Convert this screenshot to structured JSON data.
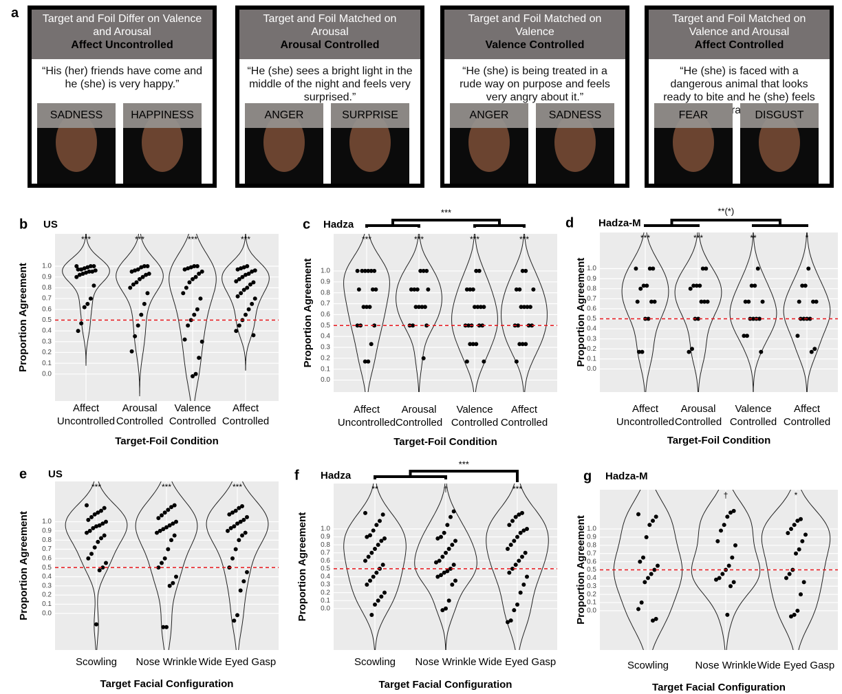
{
  "panel_a": {
    "label": "a",
    "stimuli": [
      {
        "header": "Target and Foil Differ on Valence and Arousal",
        "condition": "Affect Uncontrolled",
        "quote": "“His (her) friends have come and he (she) is very happy.”",
        "target": "SADNESS",
        "foil": "HAPPINESS"
      },
      {
        "header": "Target and Foil Matched on Arousal",
        "condition": "Arousal Controlled",
        "quote": "“He (she) sees a bright light in the middle of the night and feels very surprised.”",
        "target": "ANGER",
        "foil": "SURPRISE"
      },
      {
        "header": "Target and Foil Matched on Valence",
        "condition": "Valence Controlled",
        "quote": "“He (she) is being treated in a rude way on purpose and feels very angry about it.”",
        "target": "ANGER",
        "foil": "SADNESS"
      },
      {
        "header": "Target and Foil Matched on Valence and Arousal",
        "condition": "Affect  Controlled",
        "quote": "“He (she) is faced with a dangerous animal that looks ready to bite and he (she) feels afraid.”",
        "target": "FEAR",
        "foil": "DISGUST"
      }
    ]
  },
  "chart_data": [
    {
      "type": "violin",
      "panel": "b",
      "title": "US",
      "ylabel": "Proportion Agreement",
      "xlabel": "Target-Foil Condition",
      "categories": [
        [
          "Affect",
          "Uncontrolled"
        ],
        [
          "Arousal",
          "Controlled"
        ],
        [
          "Valence",
          "Controlled"
        ],
        [
          "Affect",
          "Controlled"
        ]
      ],
      "significance": [
        "***",
        "***",
        "***",
        "***"
      ],
      "values": [
        [
          1.0,
          1.0,
          1.0,
          0.99,
          0.98,
          0.97,
          0.97,
          0.96,
          0.95,
          0.95,
          0.94,
          0.93,
          0.92,
          0.9,
          0.82,
          0.7,
          0.65,
          0.62,
          0.47,
          0.4
        ],
        [
          1.0,
          1.0,
          0.99,
          0.97,
          0.96,
          0.95,
          0.93,
          0.92,
          0.9,
          0.88,
          0.85,
          0.83,
          0.8,
          0.75,
          0.65,
          0.55,
          0.45,
          0.35,
          0.21
        ],
        [
          1.0,
          1.0,
          0.99,
          0.98,
          0.97,
          0.95,
          0.93,
          0.9,
          0.88,
          0.85,
          0.8,
          0.75,
          0.7,
          0.6,
          0.55,
          0.5,
          0.45,
          0.32,
          0.3,
          0.15,
          0.0,
          -0.02
        ],
        [
          1.0,
          0.99,
          0.98,
          0.97,
          0.96,
          0.95,
          0.93,
          0.92,
          0.9,
          0.88,
          0.86,
          0.85,
          0.83,
          0.8,
          0.78,
          0.75,
          0.72,
          0.7,
          0.65,
          0.6,
          0.55,
          0.5,
          0.45,
          0.4,
          0.36
        ]
      ],
      "ylim": [
        -0.25,
        1.3
      ],
      "yticks": [
        {
          "value": 0,
          "label": "0.0"
        },
        0.1,
        0.2,
        0.3,
        0.4,
        0.5,
        0.6,
        0.7,
        0.8,
        0.9,
        {
          "value": 1,
          "label": "1.0"
        }
      ],
      "reference_line": 0.5,
      "reference_color": "#e8141a",
      "color": "#000000",
      "grid": true
    },
    {
      "type": "violin",
      "panel": "c",
      "title": "Hadza",
      "ylabel": "Proportion Agreement",
      "xlabel": "Target-Foil Condition",
      "categories": [
        [
          "Affect",
          "Uncontrolled"
        ],
        [
          "Arousal",
          "Controlled"
        ],
        [
          "Valence",
          "Controlled"
        ],
        [
          "Affect",
          "Controlled"
        ]
      ],
      "significance": [
        "***",
        "***",
        "***",
        "***"
      ],
      "comparison": "***",
      "values": [
        [
          1,
          1,
          1,
          1,
          1,
          1,
          0.83,
          0.83,
          0.83,
          0.67,
          0.67,
          0.67,
          0.5,
          0.5,
          0.5,
          0.33,
          0.17,
          0.17
        ],
        [
          1,
          1,
          1,
          0.83,
          0.83,
          0.83,
          0.83,
          0.67,
          0.67,
          0.67,
          0.67,
          0.5,
          0.5,
          0.5,
          0.2
        ],
        [
          1,
          1,
          0.83,
          0.83,
          0.83,
          0.67,
          0.67,
          0.67,
          0.67,
          0.5,
          0.5,
          0.5,
          0.5,
          0.5,
          0.33,
          0.33,
          0.33,
          0.17,
          0.17
        ],
        [
          1,
          1,
          0.83,
          0.83,
          0.83,
          0.67,
          0.67,
          0.67,
          0.67,
          0.5,
          0.5,
          0.5,
          0.5,
          0.33,
          0.33,
          0.33,
          0.17
        ]
      ],
      "ylim": [
        -0.11,
        1.34
      ],
      "yticks": [
        {
          "value": 0,
          "label": "0.0"
        },
        0.1,
        0.2,
        0.3,
        0.4,
        0.5,
        0.6,
        0.7,
        0.8,
        0.9,
        {
          "value": 1,
          "label": "1.0"
        }
      ],
      "reference_line": 0.5,
      "reference_color": "#e8141a",
      "color": "#000000",
      "grid": true
    },
    {
      "type": "violin",
      "panel": "d",
      "title": "Hadza-M",
      "ylabel": "Proportion Agreement",
      "xlabel": "Target-Foil Condition",
      "categories": [
        [
          "Affect",
          "Uncontrolled"
        ],
        [
          "Arousal",
          "Controlled"
        ],
        [
          "Valence",
          "Controlled"
        ],
        [
          "Affect",
          "Controlled"
        ]
      ],
      "significance": [
        "***",
        "***",
        "**",
        "*"
      ],
      "comparison": "**(*)",
      "values": [
        [
          1,
          1,
          1,
          0.83,
          0.83,
          0.8,
          0.67,
          0.67,
          0.67,
          0.5,
          0.5,
          0.17,
          0.17
        ],
        [
          1,
          1,
          0.83,
          0.83,
          0.83,
          0.8,
          0.67,
          0.67,
          0.67,
          0.5,
          0.5,
          0.2,
          0.17
        ],
        [
          1,
          0.83,
          0.83,
          0.67,
          0.67,
          0.67,
          0.5,
          0.5,
          0.5,
          0.5,
          0.33,
          0.33,
          0.17
        ],
        [
          1,
          0.83,
          0.83,
          0.67,
          0.67,
          0.67,
          0.5,
          0.5,
          0.5,
          0.5,
          0.33,
          0.2,
          0.17
        ]
      ],
      "ylim": [
        -0.23,
        1.36
      ],
      "yticks": [
        {
          "value": 0,
          "label": "0.0"
        },
        0.1,
        0.2,
        0.3,
        0.4,
        0.5,
        0.6,
        0.7,
        0.8,
        0.9,
        {
          "value": 1,
          "label": "1.0"
        }
      ],
      "reference_line": 0.5,
      "reference_color": "#e8141a",
      "color": "#000000",
      "grid": true
    },
    {
      "type": "violin",
      "panel": "e",
      "title": "US",
      "ylabel": "Proportion Agreement",
      "xlabel": "Target Facial Configuration",
      "categories": [
        [
          "Scowling"
        ],
        [
          "Nose Wrinkle"
        ],
        [
          "Wide Eyed Gasp"
        ]
      ],
      "significance": [
        "***",
        "***",
        "***"
      ],
      "values": [
        [
          1.18,
          1.15,
          1.12,
          1.1,
          1.08,
          1.05,
          1.02,
          1.0,
          0.98,
          0.96,
          0.95,
          0.93,
          0.9,
          0.88,
          0.85,
          0.82,
          0.78,
          0.72,
          0.65,
          0.6,
          0.55,
          0.5,
          0.47,
          -0.12
        ],
        [
          1.18,
          1.16,
          1.13,
          1.1,
          1.07,
          1.04,
          1.0,
          0.98,
          0.96,
          0.94,
          0.92,
          0.9,
          0.88,
          0.85,
          0.8,
          0.7,
          0.6,
          0.55,
          0.5,
          0.4,
          0.33,
          0.3,
          -0.15,
          -0.15
        ],
        [
          1.17,
          1.15,
          1.12,
          1.1,
          1.08,
          1.05,
          1.02,
          1.0,
          0.98,
          0.95,
          0.93,
          0.9,
          0.88,
          0.85,
          0.8,
          0.7,
          0.6,
          0.5,
          0.45,
          0.35,
          0.25,
          -0.02,
          -0.08
        ]
      ],
      "ylim": [
        -0.4,
        1.44
      ],
      "yticks": [
        {
          "value": 0,
          "label": "0.0"
        },
        0.1,
        0.2,
        0.3,
        0.4,
        0.5,
        0.6,
        0.7,
        0.8,
        0.9,
        {
          "value": 1,
          "label": "1.0"
        }
      ],
      "reference_line": 0.5,
      "reference_color": "#e8141a",
      "color": "#000000",
      "grid": true
    },
    {
      "type": "violin",
      "panel": "f",
      "title": "Hadza",
      "ylabel": "Proportion Agreement",
      "xlabel": "Target Facial Configuration",
      "categories": [
        [
          "Scowling"
        ],
        [
          "Nose Wrinkle"
        ],
        [
          "Wide Eyed Gasp"
        ]
      ],
      "significance": [
        "**",
        "†",
        "***"
      ],
      "comparison": "***",
      "values": [
        [
          1.2,
          1.18,
          1.1,
          1.05,
          0.98,
          0.92,
          0.9,
          0.88,
          0.85,
          0.8,
          0.75,
          0.7,
          0.65,
          0.6,
          0.55,
          0.5,
          0.45,
          0.4,
          0.35,
          0.3,
          0.2,
          0.15,
          0.1,
          0.05,
          -0.08
        ],
        [
          1.22,
          1.15,
          1.05,
          0.95,
          0.9,
          0.88,
          0.85,
          0.8,
          0.75,
          0.7,
          0.65,
          0.6,
          0.58,
          0.55,
          0.5,
          0.47,
          0.45,
          0.42,
          0.4,
          0.35,
          0.3,
          0.1,
          0.0,
          -0.02
        ],
        [
          1.2,
          1.18,
          1.15,
          1.1,
          1.05,
          1.0,
          0.98,
          0.95,
          0.9,
          0.85,
          0.8,
          0.75,
          0.7,
          0.65,
          0.6,
          0.55,
          0.5,
          0.45,
          0.4,
          0.3,
          0.2,
          0.05,
          -0.02,
          -0.15,
          -0.17
        ]
      ],
      "ylim": [
        -0.52,
        1.57
      ],
      "yticks": [
        {
          "value": 0,
          "label": "0.0"
        },
        0.1,
        0.2,
        0.3,
        0.4,
        0.5,
        0.6,
        0.7,
        0.8,
        0.9,
        {
          "value": 1,
          "label": "1.0"
        }
      ],
      "reference_line": 0.5,
      "reference_color": "#e8141a",
      "color": "#000000",
      "grid": true
    },
    {
      "type": "violin",
      "panel": "g",
      "title": "Hadza-M",
      "ylabel": "Proportion Agreement",
      "xlabel": "Target Facial Configuration",
      "categories": [
        [
          "Scowling"
        ],
        [
          "Nose Wrinkle"
        ],
        [
          "Wide Eyed Gasp"
        ]
      ],
      "significance": [
        null,
        "†",
        "*"
      ],
      "values": [
        [
          1.18,
          1.15,
          1.1,
          1.05,
          0.9,
          0.65,
          0.6,
          0.55,
          0.5,
          0.45,
          0.4,
          0.35,
          0.1,
          0.02,
          -0.1,
          -0.12
        ],
        [
          1.22,
          1.2,
          1.15,
          1.05,
          0.98,
          0.85,
          0.8,
          0.65,
          0.55,
          0.5,
          0.45,
          0.4,
          0.38,
          0.35,
          0.3,
          -0.05
        ],
        [
          1.12,
          1.1,
          1.05,
          1.0,
          0.95,
          0.93,
          0.85,
          0.75,
          0.7,
          0.5,
          0.45,
          0.4,
          0.35,
          0.2,
          0,
          -0.05,
          -0.07
        ]
      ],
      "ylim": [
        -0.48,
        1.48
      ],
      "yticks": [
        {
          "value": 0,
          "label": "0.0"
        },
        0.1,
        0.2,
        0.3,
        0.4,
        0.5,
        0.6,
        0.7,
        0.8,
        0.9,
        {
          "value": 1,
          "label": "1.0"
        }
      ],
      "reference_line": 0.5,
      "reference_color": "#e8141a",
      "color": "#000000",
      "grid": true
    }
  ]
}
